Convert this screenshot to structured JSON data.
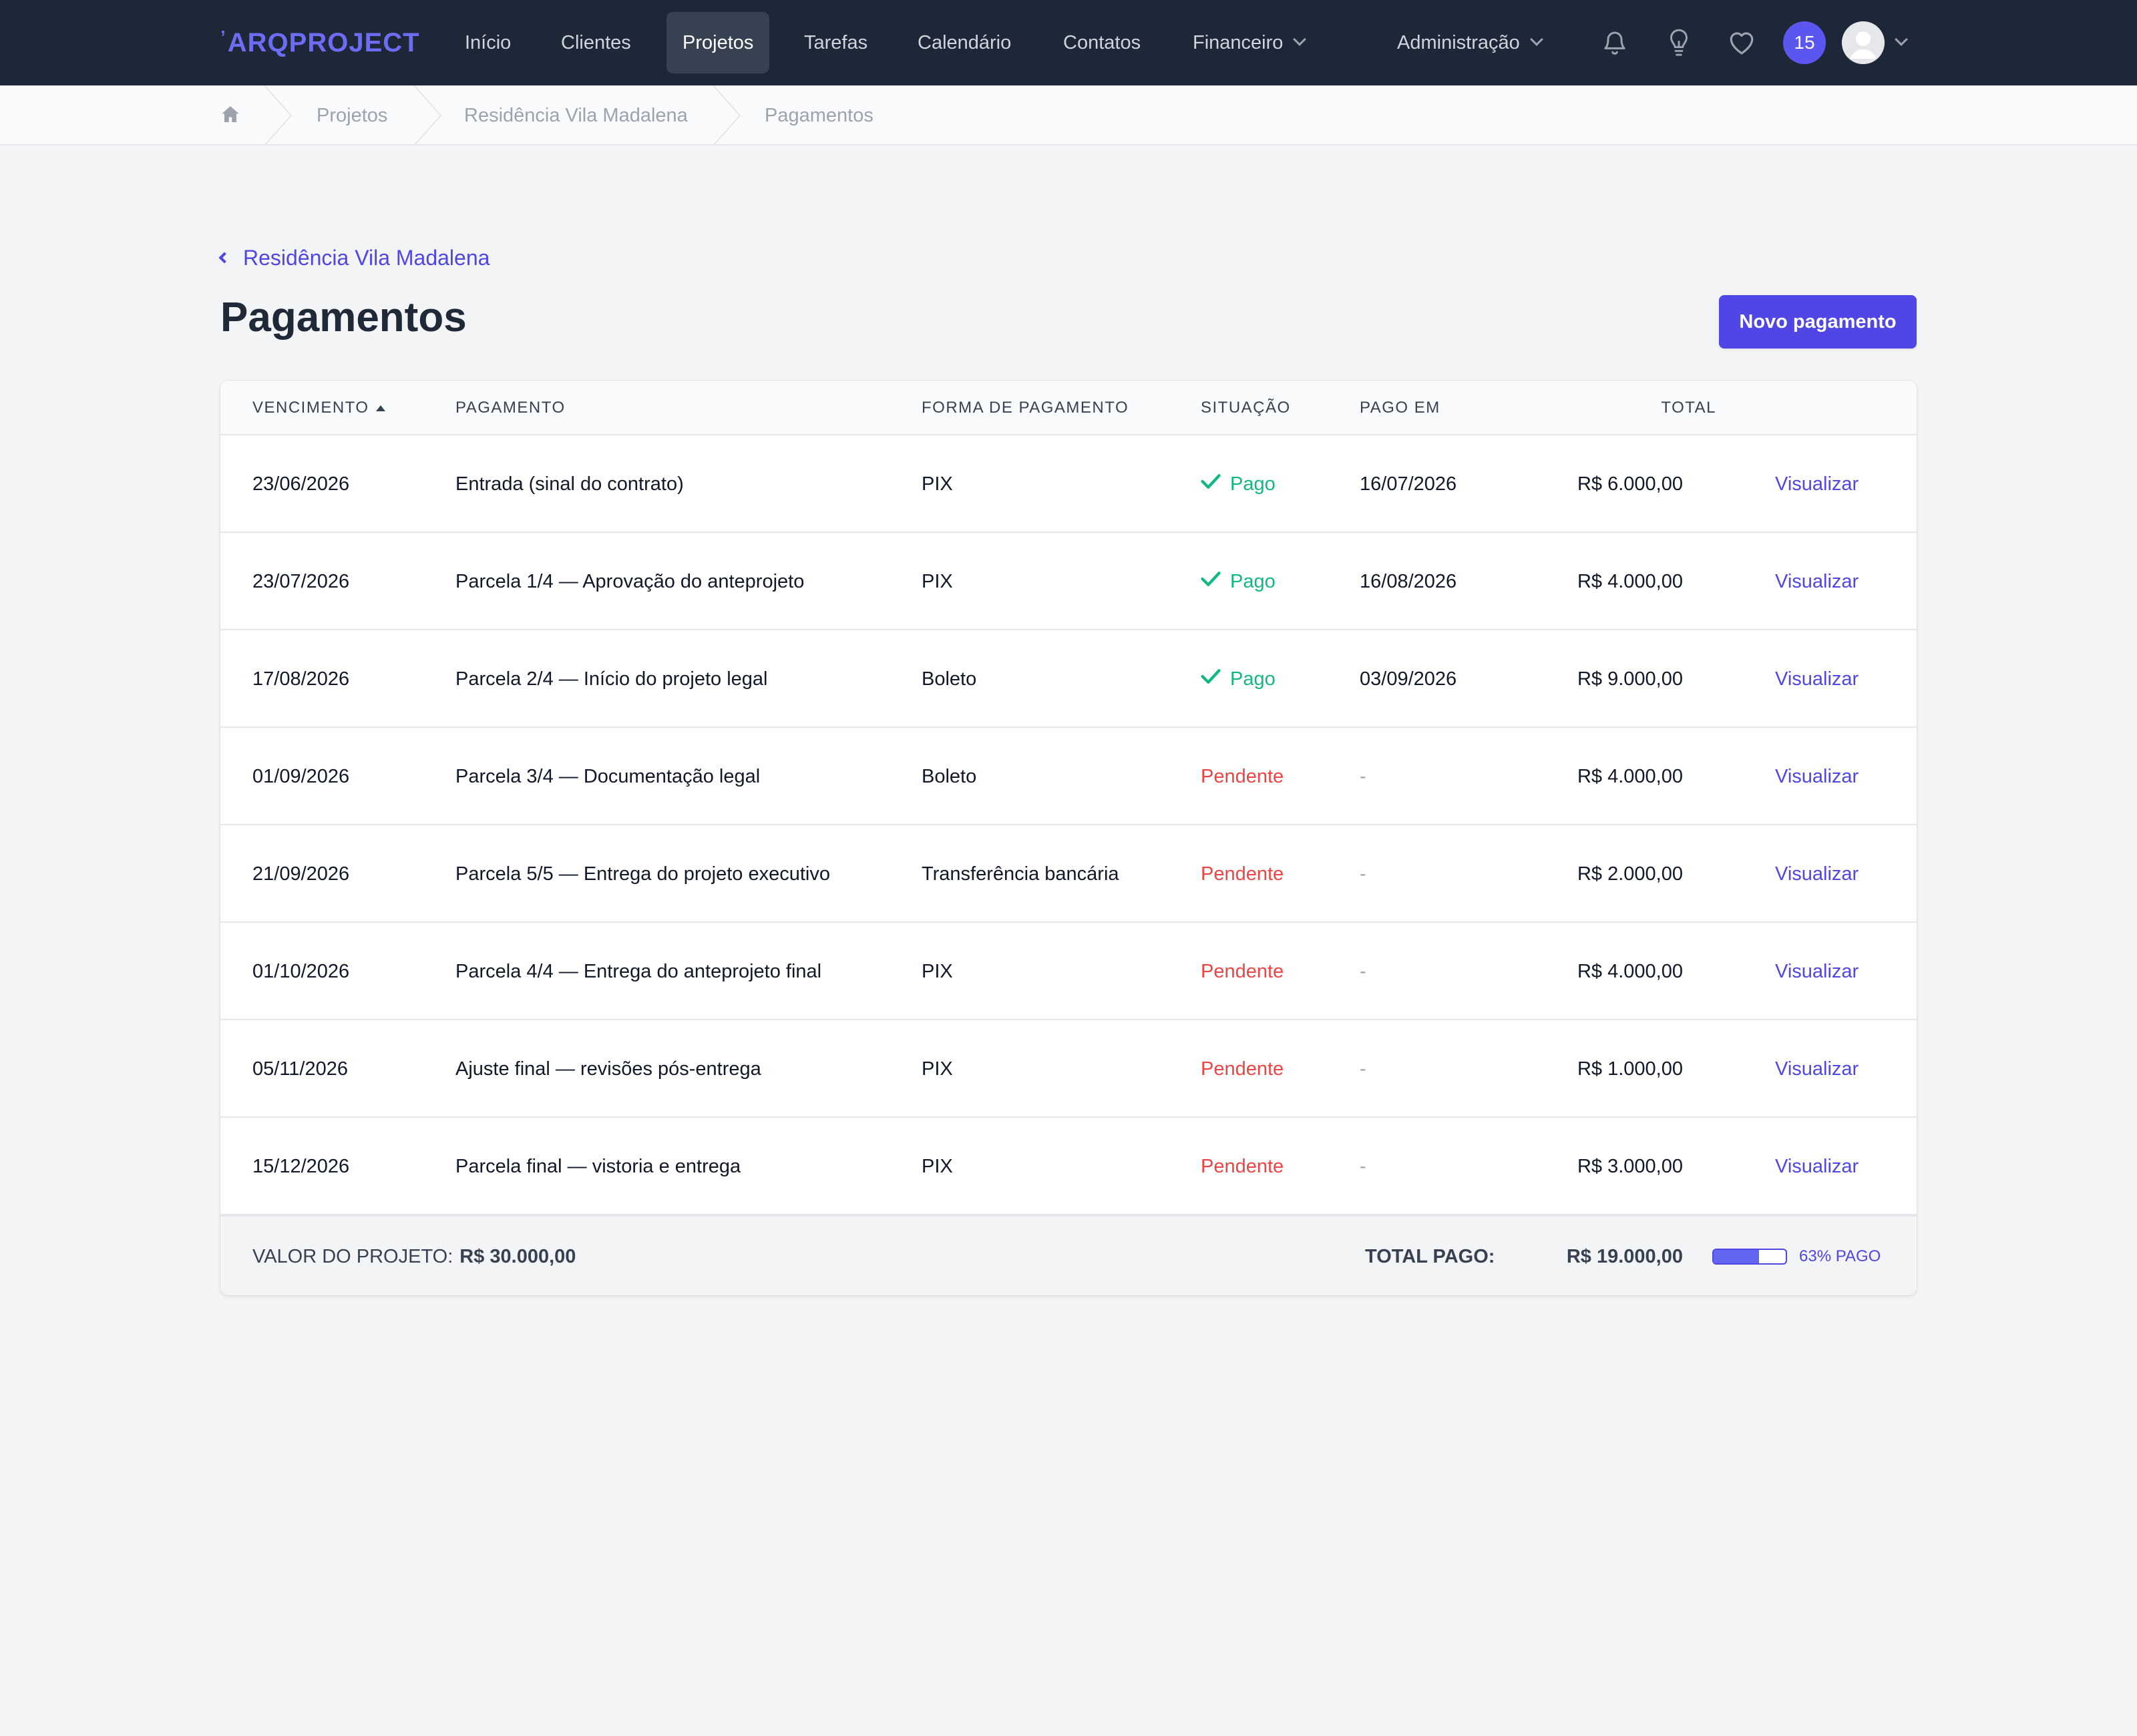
{
  "app": {
    "logo_mark": "’",
    "logo_text": "ARQPROJECT"
  },
  "nav": {
    "items": [
      {
        "label": "Início"
      },
      {
        "label": "Clientes"
      },
      {
        "label": "Projetos",
        "active": true
      },
      {
        "label": "Tarefas"
      },
      {
        "label": "Calendário"
      },
      {
        "label": "Contatos"
      },
      {
        "label": "Financeiro",
        "dropdown": true
      }
    ],
    "admin_label": "Administração",
    "notification_count": "15",
    "icons": [
      "bell-icon",
      "lightbulb-icon",
      "heart-icon"
    ]
  },
  "breadcrumb": {
    "home_icon": "home-icon",
    "items": [
      "Projetos",
      "Residência Vila Madalena",
      "Pagamentos"
    ]
  },
  "header": {
    "back_link": "Residência Vila Madalena",
    "title": "Pagamentos",
    "new_button": "Novo pagamento"
  },
  "table": {
    "columns": {
      "due": "VENCIMENTO",
      "payment": "PAGAMENTO",
      "method": "FORMA DE PAGAMENTO",
      "status": "SITUAÇÃO",
      "paid_on": "PAGO EM",
      "total": "TOTAL"
    },
    "sort": {
      "column": "due",
      "direction": "ascending"
    },
    "rows": [
      {
        "due": "23/06/2026",
        "payment": "Entrada (sinal do contrato)",
        "method": "PIX",
        "status": "Pago",
        "paid": true,
        "paid_on": "16/07/2026",
        "total": "R$ 6.000,00",
        "action": "Visualizar"
      },
      {
        "due": "23/07/2026",
        "payment": "Parcela 1/4 — Aprovação do anteprojeto",
        "method": "PIX",
        "status": "Pago",
        "paid": true,
        "paid_on": "16/08/2026",
        "total": "R$ 4.000,00",
        "action": "Visualizar"
      },
      {
        "due": "17/08/2026",
        "payment": "Parcela 2/4 — Início do projeto legal",
        "method": "Boleto",
        "status": "Pago",
        "paid": true,
        "paid_on": "03/09/2026",
        "total": "R$ 9.000,00",
        "action": "Visualizar"
      },
      {
        "due": "01/09/2026",
        "payment": "Parcela 3/4 — Documentação legal",
        "method": "Boleto",
        "status": "Pendente",
        "paid": false,
        "paid_on": "-",
        "total": "R$ 4.000,00",
        "action": "Visualizar"
      },
      {
        "due": "21/09/2026",
        "payment": "Parcela 5/5 — Entrega do projeto executivo",
        "method": "Transferência bancária",
        "status": "Pendente",
        "paid": false,
        "paid_on": "-",
        "total": "R$ 2.000,00",
        "action": "Visualizar"
      },
      {
        "due": "01/10/2026",
        "payment": "Parcela 4/4 — Entrega do anteprojeto final",
        "method": "PIX",
        "status": "Pendente",
        "paid": false,
        "paid_on": "-",
        "total": "R$ 4.000,00",
        "action": "Visualizar"
      },
      {
        "due": "05/11/2026",
        "payment": "Ajuste final — revisões pós-entrega",
        "method": "PIX",
        "status": "Pendente",
        "paid": false,
        "paid_on": "-",
        "total": "R$ 1.000,00",
        "action": "Visualizar"
      },
      {
        "due": "15/12/2026",
        "payment": "Parcela final — vistoria e entrega",
        "method": "PIX",
        "status": "Pendente",
        "paid": false,
        "paid_on": "-",
        "total": "R$ 3.000,00",
        "action": "Visualizar"
      }
    ]
  },
  "footer": {
    "project_value_label": "VALOR DO PROJETO:",
    "project_value": "R$ 30.000,00",
    "total_paid_label": "TOTAL PAGO:",
    "total_paid": "R$ 19.000,00",
    "progress_percent": 63,
    "progress_label": "63% PAGO"
  },
  "colors": {
    "nav_bg": "#1e2738",
    "accent": "#4f46e5",
    "paid": "#10b981",
    "pending": "#ef4444"
  }
}
